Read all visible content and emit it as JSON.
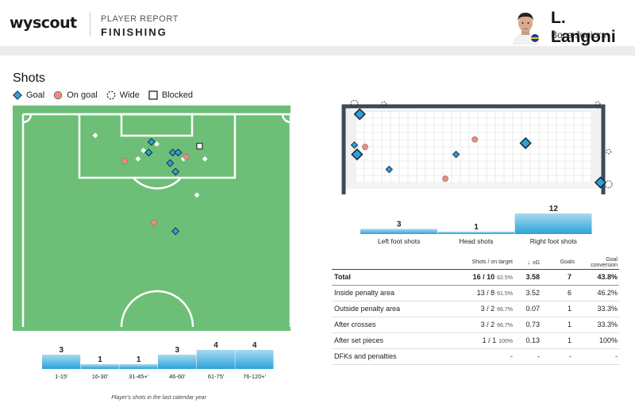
{
  "header": {
    "brand": "wyscout",
    "report_kicker": "PLAYER REPORT",
    "report_title": "FINISHING",
    "player_name": "L. Langoni",
    "player_team": "Boca Juniors"
  },
  "section_title": "Shots",
  "legend": [
    {
      "label": "Goal",
      "shape": "diamond-icon",
      "color": "#29a3dc"
    },
    {
      "label": "On goal",
      "shape": "circle-icon",
      "color": "#f08a80"
    },
    {
      "label": "Wide",
      "shape": "dashed-circle-icon",
      "color": "#222222"
    },
    {
      "label": "Blocked",
      "shape": "square-icon",
      "color": "#ffffff"
    }
  ],
  "colors": {
    "pitch": "#6dbf77",
    "pitch_lines": "#ffffff",
    "goal_marker": "#29a3dc",
    "on_goal_marker": "#f08a80",
    "bar_top": "#a9d9ef",
    "bar_bottom": "#29a3dc",
    "goal_frame": "#3d4b57",
    "goal_net": "#dcdcdc"
  },
  "chart_data": [
    {
      "type": "scatter",
      "description_key": "pitch_shot_map",
      "coordinate_system": "pitch x 0-100 across, y 0-100 from goal line",
      "points": [
        {
          "x": 27,
          "y": 10,
          "kind": "blocked-small"
        },
        {
          "x": 43,
          "y": 21,
          "kind": "blocked-small"
        },
        {
          "x": 45,
          "y": 17,
          "kind": "blocked-small"
        },
        {
          "x": 50,
          "y": 14,
          "kind": "blocked-small"
        },
        {
          "x": 60,
          "y": 21,
          "kind": "blocked-small"
        },
        {
          "x": 68,
          "y": 21,
          "kind": "blocked-small"
        },
        {
          "x": 65,
          "y": 38,
          "kind": "blocked-small"
        },
        {
          "x": 48,
          "y": 13,
          "kind": "goal"
        },
        {
          "x": 47,
          "y": 18,
          "kind": "goal"
        },
        {
          "x": 56,
          "y": 18,
          "kind": "goal"
        },
        {
          "x": 58,
          "y": 18,
          "kind": "goal"
        },
        {
          "x": 55,
          "y": 23,
          "kind": "goal"
        },
        {
          "x": 57,
          "y": 27,
          "kind": "goal"
        },
        {
          "x": 57,
          "y": 55,
          "kind": "goal"
        },
        {
          "x": 38,
          "y": 22,
          "kind": "on-goal"
        },
        {
          "x": 61,
          "y": 20,
          "kind": "on-goal"
        },
        {
          "x": 49,
          "y": 51,
          "kind": "on-goal"
        },
        {
          "x": 66,
          "y": 15,
          "kind": "blocked"
        }
      ]
    },
    {
      "type": "scatter",
      "description_key": "goal_mouth_placement",
      "coordinate_system": "goal x 0-100 across, y 0-100 from top",
      "points": [
        {
          "x": 6,
          "y": 16,
          "kind": "goal",
          "size": "large"
        },
        {
          "x": 4,
          "y": 49,
          "kind": "goal",
          "size": "small"
        },
        {
          "x": 5,
          "y": 59,
          "kind": "goal",
          "size": "large"
        },
        {
          "x": 17,
          "y": 75,
          "kind": "goal",
          "size": "small"
        },
        {
          "x": 42,
          "y": 59,
          "kind": "goal",
          "size": "small"
        },
        {
          "x": 68,
          "y": 47,
          "kind": "goal",
          "size": "large"
        },
        {
          "x": 96,
          "y": 89,
          "kind": "goal",
          "size": "large"
        },
        {
          "x": 8,
          "y": 51,
          "kind": "on-goal"
        },
        {
          "x": 49,
          "y": 43,
          "kind": "on-goal"
        },
        {
          "x": 38,
          "y": 85,
          "kind": "on-goal"
        },
        {
          "x": 4,
          "y": 5,
          "kind": "wide",
          "size": "medium"
        },
        {
          "x": 15,
          "y": 5,
          "kind": "wide",
          "size": "small"
        },
        {
          "x": 95,
          "y": 5,
          "kind": "wide",
          "size": "small"
        },
        {
          "x": 99,
          "y": 56,
          "kind": "wide",
          "size": "small"
        },
        {
          "x": 99,
          "y": 91,
          "kind": "wide",
          "size": "medium"
        }
      ]
    },
    {
      "type": "bar",
      "description_key": "shots_by_foot",
      "categories": [
        "Left foot shots",
        "Head shots",
        "Right foot shots"
      ],
      "values": [
        3,
        1,
        12
      ],
      "ylim": [
        0,
        12
      ]
    },
    {
      "type": "bar",
      "description_key": "shots_by_time",
      "categories": [
        "1-15'",
        "16-30'",
        "31-45+'",
        "46-60'",
        "61-75'",
        "76-120+'"
      ],
      "values": [
        3,
        1,
        1,
        3,
        4,
        4
      ],
      "ylim": [
        0,
        4
      ]
    }
  ],
  "footnote": "Player's shots in the last calendar year",
  "table": {
    "headers": [
      "",
      "Shots / on target",
      "xG",
      "Goals",
      "Goal conversion"
    ],
    "sort_icon": "↓",
    "rows": [
      {
        "label": "Total",
        "shots": "16 / 10",
        "pct": "62.5%",
        "xg": "3.58",
        "goals": "7",
        "conversion": "43.8%",
        "total": true
      },
      {
        "label": "Inside penalty area",
        "shots": "13 / 8",
        "pct": "61.5%",
        "xg": "3.52",
        "goals": "6",
        "conversion": "46.2%"
      },
      {
        "label": "Outside penalty area",
        "shots": "3 / 2",
        "pct": "66.7%",
        "xg": "0.07",
        "goals": "1",
        "conversion": "33.3%"
      },
      {
        "label": "After crosses",
        "shots": "3 / 2",
        "pct": "66.7%",
        "xg": "0.73",
        "goals": "1",
        "conversion": "33.3%"
      },
      {
        "label": "After set pieces",
        "shots": "1 / 1",
        "pct": "100%",
        "xg": "0.13",
        "goals": "1",
        "conversion": "100%"
      },
      {
        "label": "DFKs and penalties",
        "shots": "-",
        "pct": "",
        "xg": "-",
        "goals": "-",
        "conversion": "-"
      }
    ]
  }
}
